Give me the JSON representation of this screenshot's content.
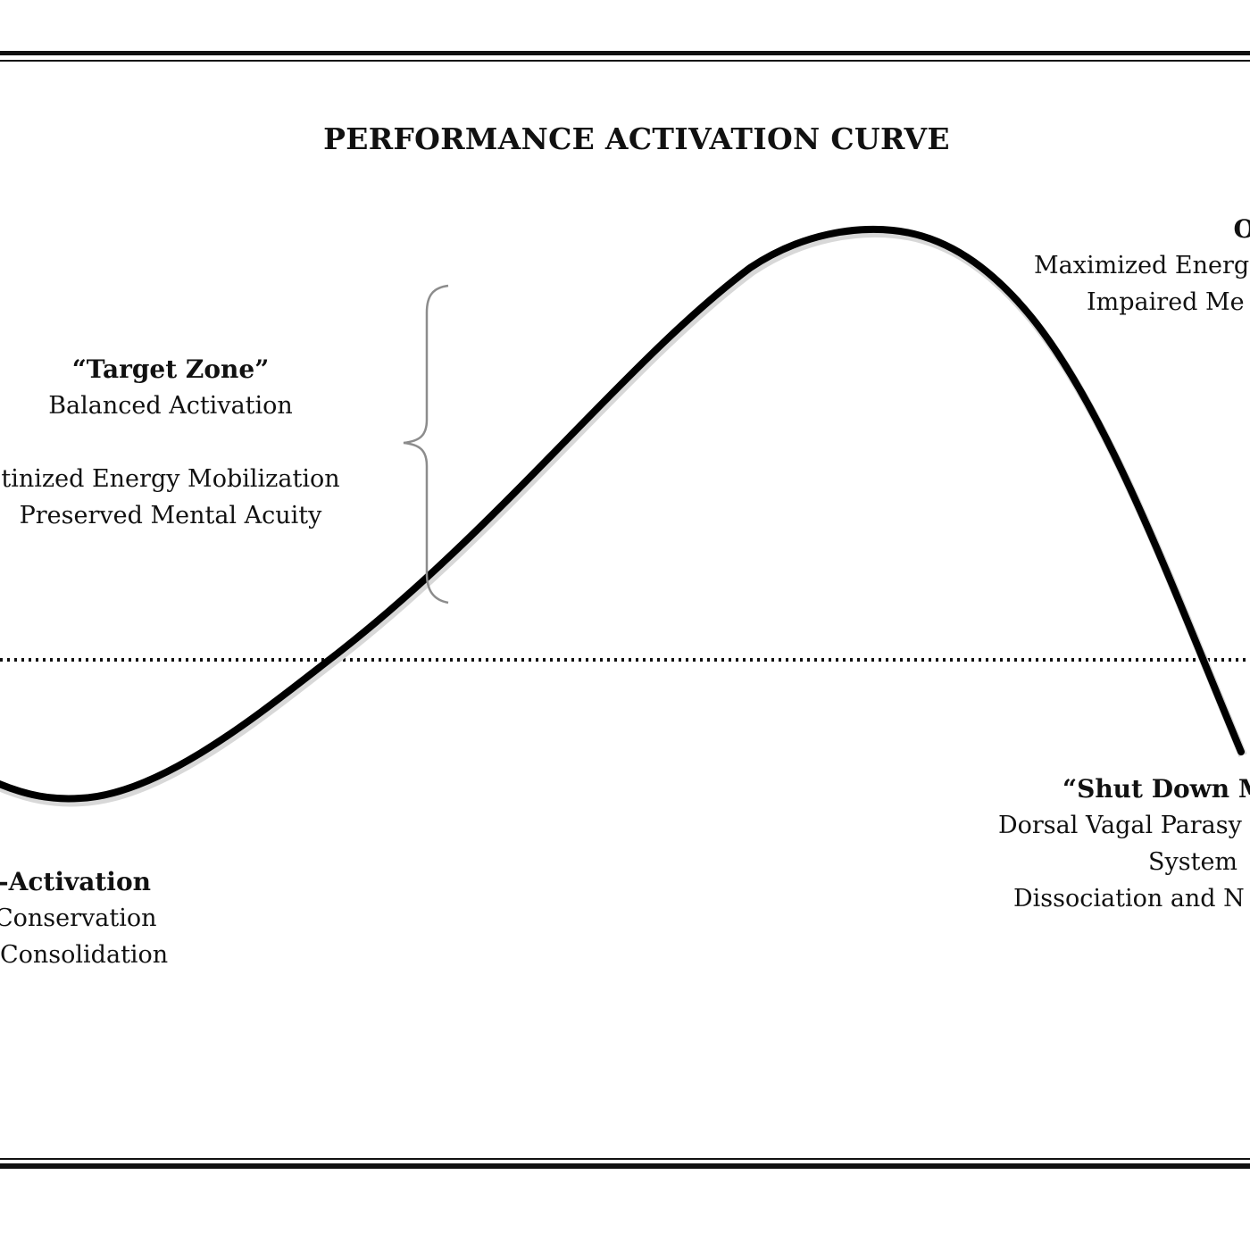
{
  "title": "PERFORMANCE ACTIVATION CURVE",
  "target_zone": {
    "heading": "“Target Zone”",
    "lines": [
      "Balanced Activation",
      "tinized Energy Mobilization",
      "Preserved Mental Acuity"
    ]
  },
  "over_activation": {
    "heading": "Over-Act",
    "lines": [
      "Maximized Energ",
      "Impaired Me"
    ]
  },
  "under_activation": {
    "heading": "-Activation",
    "lines": [
      "Conservation",
      "Consolidation"
    ]
  },
  "shut_down": {
    "heading": "“Shut Down M",
    "lines": [
      "Dorsal Vagal Parasy",
      "System",
      "Dissociation and N"
    ]
  },
  "colors": {
    "curve": "#000000",
    "brace": "#8c8c8c",
    "baseline": "#111111",
    "border": "#111111"
  }
}
